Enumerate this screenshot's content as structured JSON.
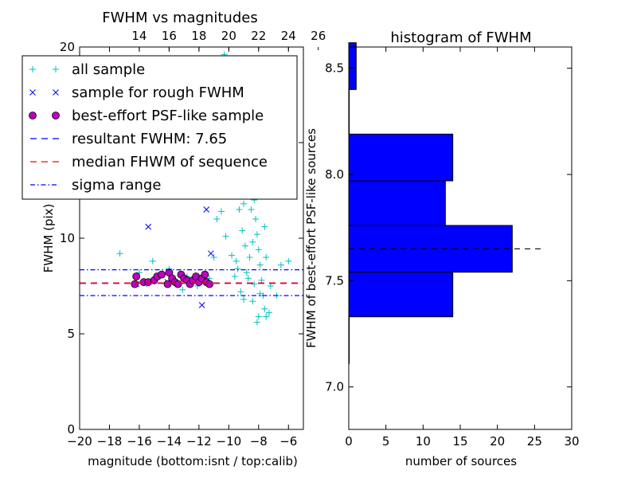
{
  "chart_data": [
    {
      "type": "scatter",
      "title": "FWHM vs magnitudes",
      "xlabel": "magnitude (bottom:isnt / top:calib)",
      "ylabel": "FWHM (pix)",
      "xlim": [
        -20,
        -5
      ],
      "ylim": [
        0,
        20
      ],
      "xticks": [
        -20,
        -18,
        -16,
        -14,
        -12,
        -10,
        -8,
        -6
      ],
      "xtick_labels": [
        "−20",
        "−18",
        "−16",
        "−14",
        "−12",
        "−10",
        "−8",
        "−6"
      ],
      "yticks": [
        0,
        5,
        10,
        15,
        20
      ],
      "ytick_labels": [
        "0",
        "5",
        "10",
        "15",
        "20"
      ],
      "top_xticks": [
        14,
        16,
        18,
        20,
        22,
        24,
        26
      ],
      "top_xtick_labels": [
        "14",
        "16",
        "18",
        "20",
        "22",
        "24",
        "26"
      ],
      "top_axis_offset": 30,
      "grid": false,
      "legend_position": "upper-left",
      "series": [
        {
          "name": "all sample",
          "marker": "plus",
          "color": "#00bfbf",
          "points": [
            [
              -17.3,
              9.2
            ],
            [
              -16.0,
              8.2
            ],
            [
              -15.1,
              8.8
            ],
            [
              -14.6,
              8.0
            ],
            [
              -14.0,
              8.4
            ],
            [
              -13.1,
              7.3
            ],
            [
              -12.8,
              8.0
            ],
            [
              -12.1,
              7.5
            ],
            [
              -11.5,
              7.8
            ],
            [
              -11.0,
              9.0
            ],
            [
              -10.7,
              19.2
            ],
            [
              -10.3,
              19.6
            ],
            [
              -10.2,
              17.5
            ],
            [
              -10.0,
              16.3
            ],
            [
              -9.8,
              14.6
            ],
            [
              -9.6,
              13.8
            ],
            [
              -9.4,
              12.4
            ],
            [
              -9.3,
              11.5
            ],
            [
              -9.1,
              10.4
            ],
            [
              -8.9,
              9.6
            ],
            [
              -8.8,
              18.5
            ],
            [
              -8.7,
              17.0
            ],
            [
              -8.6,
              15.8
            ],
            [
              -8.5,
              14.2
            ],
            [
              -8.4,
              13.1
            ],
            [
              -8.3,
              12.0
            ],
            [
              -8.2,
              11.0
            ],
            [
              -8.1,
              10.2
            ],
            [
              -8.0,
              9.4
            ],
            [
              -7.9,
              8.6
            ],
            [
              -7.8,
              7.8
            ],
            [
              -7.7,
              7.0
            ],
            [
              -7.6,
              6.3
            ],
            [
              -7.5,
              5.9
            ],
            [
              -8.4,
              6.7
            ],
            [
              -8.1,
              5.6
            ],
            [
              -8.0,
              5.9
            ],
            [
              -7.3,
              6.1
            ],
            [
              -9.6,
              8.0
            ],
            [
              -9.2,
              7.2
            ],
            [
              -9.0,
              6.8
            ],
            [
              -8.8,
              8.2
            ],
            [
              -8.6,
              9.0
            ],
            [
              -8.3,
              7.6
            ],
            [
              -7.9,
              7.1
            ],
            [
              -7.2,
              7.5
            ],
            [
              -6.8,
              7.0
            ],
            [
              -6.5,
              8.6
            ],
            [
              -6.0,
              8.8
            ],
            [
              -10.5,
              11.4
            ],
            [
              -10.2,
              10.1
            ],
            [
              -9.8,
              9.1
            ],
            [
              -9.5,
              8.8
            ],
            [
              -9.0,
              11.8
            ],
            [
              -8.6,
              12.6
            ],
            [
              -8.2,
              13.6
            ],
            [
              -8.0,
              14.4
            ],
            [
              -7.9,
              15.3
            ],
            [
              -7.8,
              16.2
            ],
            [
              -7.7,
              12.8
            ],
            [
              -9.3,
              16.8
            ],
            [
              -9.8,
              18.0
            ],
            [
              -10.4,
              13.0
            ],
            [
              -10.8,
              11.0
            ],
            [
              -11.3,
              7.9
            ],
            [
              -12.5,
              7.7
            ],
            [
              -13.6,
              7.6
            ],
            [
              -15.5,
              7.6
            ],
            [
              -8.5,
              11.5
            ],
            [
              -8.9,
              13.3
            ],
            [
              -8.4,
              9.8
            ],
            [
              -7.6,
              10.6
            ],
            [
              -7.5,
              9.0
            ],
            [
              -8.7,
              7.9
            ],
            [
              -9.4,
              8.4
            ]
          ]
        },
        {
          "name": "sample for rough FWHM",
          "marker": "x",
          "color": "#0000ff",
          "points": [
            [
              -15.4,
              10.6
            ],
            [
              -11.5,
              11.5
            ],
            [
              -11.4,
              12.3
            ],
            [
              -11.2,
              9.2
            ],
            [
              -11.8,
              6.5
            ],
            [
              -10.8,
              14.0
            ],
            [
              -11.6,
              7.9
            ],
            [
              -12.6,
              7.8
            ],
            [
              -14.1,
              7.7
            ],
            [
              -16.2,
              7.6
            ]
          ]
        },
        {
          "name": "best-effort PSF-like sample",
          "marker": "circle",
          "color": "#bf00bf",
          "points": [
            [
              -16.3,
              7.6
            ],
            [
              -16.2,
              8.0
            ],
            [
              -15.7,
              7.7
            ],
            [
              -15.4,
              7.7
            ],
            [
              -15.0,
              7.8
            ],
            [
              -14.8,
              8.0
            ],
            [
              -14.5,
              8.1
            ],
            [
              -14.1,
              7.6
            ],
            [
              -14.0,
              8.2
            ],
            [
              -13.8,
              7.9
            ],
            [
              -13.6,
              7.7
            ],
            [
              -13.4,
              7.6
            ],
            [
              -13.2,
              8.1
            ],
            [
              -13.0,
              7.9
            ],
            [
              -12.8,
              7.8
            ],
            [
              -12.6,
              7.6
            ],
            [
              -12.4,
              7.8
            ],
            [
              -12.2,
              8.0
            ],
            [
              -12.0,
              7.7
            ],
            [
              -11.8,
              7.9
            ],
            [
              -11.6,
              8.1
            ],
            [
              -11.5,
              7.7
            ],
            [
              -11.3,
              7.6
            ]
          ]
        },
        {
          "name": "resultant FWHM: 7.65",
          "line": "dashed",
          "color": "#0000ff",
          "y": 7.65
        },
        {
          "name": "median FHWM of sequence",
          "line": "dashed",
          "color": "#ff0000",
          "y": 7.65
        },
        {
          "name": "sigma range",
          "line": "dashdot",
          "color": "#0000ff",
          "y": [
            7.0,
            8.35
          ]
        }
      ]
    },
    {
      "type": "bar",
      "orientation": "horizontal",
      "title": "histogram of FWHM",
      "xlabel": "number of sources",
      "ylabel": "FWHM of best-effort PSF-like sources",
      "xlim": [
        0,
        30
      ],
      "ylim": [
        6.8,
        8.6
      ],
      "xticks": [
        0,
        5,
        10,
        15,
        20,
        25,
        30
      ],
      "xtick_labels": [
        "0",
        "5",
        "10",
        "15",
        "20",
        "25",
        "30"
      ],
      "yticks": [
        7.0,
        7.5,
        8.0,
        8.5
      ],
      "ytick_labels": [
        "7.0",
        "7.5",
        "8.0",
        "8.5"
      ],
      "bar_color": "#0000ff",
      "bins": [
        {
          "y0": 7.11,
          "y1": 7.33,
          "count": 0
        },
        {
          "y0": 7.33,
          "y1": 7.54,
          "count": 14
        },
        {
          "y0": 7.54,
          "y1": 7.76,
          "count": 22
        },
        {
          "y0": 7.76,
          "y1": 7.97,
          "count": 13
        },
        {
          "y0": 7.97,
          "y1": 8.19,
          "count": 14
        },
        {
          "y0": 8.19,
          "y1": 8.4,
          "count": 0
        },
        {
          "y0": 8.4,
          "y1": 8.62,
          "count": 1
        }
      ],
      "reference_line": {
        "y": 7.65,
        "x_end": 26,
        "style": "dashed",
        "color": "#000000"
      }
    }
  ]
}
